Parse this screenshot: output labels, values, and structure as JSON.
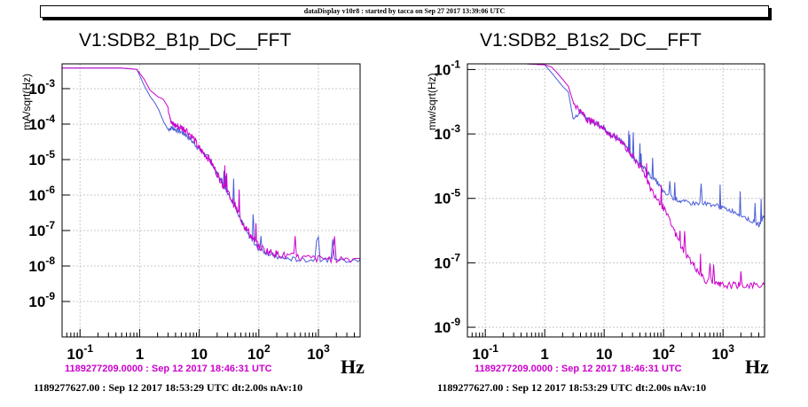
{
  "header": {
    "text": "dataDisplay v10r8 : started by tacca on Sep 27 2017 13:39:06 UTC"
  },
  "colors": {
    "reference_trace": "#cc00cc",
    "current_trace": "#4a5cd6",
    "background": "#ffffff",
    "grid": "#c8c8c8"
  },
  "chart_data": [
    {
      "type": "line",
      "title": "V1:SDB2_B1p_DC__FFT",
      "ylabel": "mA/sqrt(Hz)",
      "xlabel": "Hz",
      "xscale": "log",
      "yscale": "log",
      "xlim": [
        0.05,
        5000
      ],
      "ylim": [
        1e-10,
        0.005
      ],
      "grid": true,
      "x_ticks": [
        {
          "v": 0.1,
          "base": "10",
          "exp": "-1"
        },
        {
          "v": 1,
          "base": "1",
          "exp": ""
        },
        {
          "v": 10,
          "base": "10",
          "exp": ""
        },
        {
          "v": 100,
          "base": "10",
          "exp": "2"
        },
        {
          "v": 1000,
          "base": "10",
          "exp": "3"
        }
      ],
      "y_ticks": [
        {
          "v": 0.001,
          "exp": "-3"
        },
        {
          "v": 0.0001,
          "exp": "-4"
        },
        {
          "v": 1e-05,
          "exp": "-5"
        },
        {
          "v": 1e-06,
          "exp": "-6"
        },
        {
          "v": 1e-07,
          "exp": "-7"
        },
        {
          "v": 1e-08,
          "exp": "-8"
        },
        {
          "v": 1e-09,
          "exp": "-9"
        }
      ],
      "series": [
        {
          "color": "#4a5cd6",
          "x": [
            0.05,
            0.5,
            0.9,
            1.2,
            1.5,
            1.8,
            2.1,
            2.5,
            3,
            3.5,
            4,
            5,
            6,
            8,
            10,
            12,
            15,
            20,
            25,
            30,
            40,
            50,
            60,
            80,
            100,
            150,
            200,
            300,
            500,
            1000,
            2000,
            5000
          ],
          "y": [
            0.0038,
            0.0038,
            0.0035,
            0.0012,
            0.0006,
            0.0004,
            0.00025,
            0.00012,
            7e-05,
            8e-05,
            7e-05,
            6e-05,
            5e-05,
            3e-05,
            2e-05,
            1.5e-05,
            1e-05,
            4e-06,
            2e-06,
            1.2e-06,
            5e-07,
            2e-07,
            1e-07,
            5e-08,
            3e-08,
            2.2e-08,
            1.8e-08,
            1.6e-08,
            1.5e-08,
            1.5e-08,
            1.5e-08,
            1.5e-08
          ]
        },
        {
          "color": "#cc00cc",
          "x": [
            0.05,
            0.5,
            0.9,
            1.2,
            1.5,
            1.8,
            2,
            2.5,
            3,
            3.5,
            4,
            5,
            6,
            8,
            10,
            12,
            15,
            20,
            25,
            30,
            40,
            50,
            60,
            80,
            100,
            150,
            200,
            300,
            500,
            1000,
            2000,
            5000
          ],
          "y": [
            0.0038,
            0.0038,
            0.0035,
            0.0018,
            0.0009,
            0.0007,
            0.0006,
            0.0005,
            0.0003,
            0.0001,
            9e-05,
            8e-05,
            7e-05,
            4e-05,
            2e-05,
            1.5e-05,
            1e-05,
            4e-06,
            2e-06,
            1.2e-06,
            5e-07,
            2e-07,
            1.2e-07,
            6e-08,
            3.5e-08,
            2.5e-08,
            2.2e-08,
            1.9e-08,
            1.7e-08,
            1.6e-08,
            1.6e-08,
            1.6e-08
          ]
        }
      ],
      "timestamp_reference": "1189277209.0000 : Sep 12 2017 18:46:31 UTC",
      "timestamp_current": "1189277627.00 : Sep 12 2017 18:53:29 UTC dt:2.00s nAv:10"
    },
    {
      "type": "line",
      "title": "V1:SDB2_B1s2_DC__FFT",
      "ylabel": "mw/sqrt(Hz)",
      "xlabel": "Hz",
      "xscale": "log",
      "yscale": "log",
      "xlim": [
        0.05,
        5000
      ],
      "ylim": [
        5e-10,
        0.15
      ],
      "grid": true,
      "x_ticks": [
        {
          "v": 0.1,
          "base": "10",
          "exp": "-1"
        },
        {
          "v": 1,
          "base": "1",
          "exp": ""
        },
        {
          "v": 10,
          "base": "10",
          "exp": ""
        },
        {
          "v": 100,
          "base": "10",
          "exp": "2"
        },
        {
          "v": 1000,
          "base": "10",
          "exp": "3"
        }
      ],
      "y_ticks": [
        {
          "v": 0.1,
          "exp": "-1"
        },
        {
          "v": 0.001,
          "exp": "-3"
        },
        {
          "v": 1e-05,
          "exp": "-5"
        },
        {
          "v": 1e-07,
          "exp": "-7"
        },
        {
          "v": 1e-09,
          "exp": "-9"
        }
      ],
      "series": [
        {
          "color": "#4a5cd6",
          "x": [
            0.05,
            0.5,
            1,
            1.3,
            1.6,
            2,
            2.5,
            3,
            4,
            5,
            6,
            8,
            10,
            12,
            15,
            20,
            25,
            30,
            40,
            50,
            60,
            80,
            100,
            150,
            200,
            300,
            500,
            800,
            1000,
            1500,
            2000,
            3000,
            4000,
            5000
          ],
          "y": [
            0.15,
            0.15,
            0.14,
            0.08,
            0.05,
            0.03,
            0.02,
            0.003,
            0.005,
            0.003,
            0.0025,
            0.002,
            0.0015,
            0.001,
            0.0008,
            0.0006,
            0.0003,
            0.0002,
            0.0001,
            8e-05,
            5e-05,
            3e-05,
            1.5e-05,
            1e-05,
            8e-06,
            7e-06,
            7e-06,
            6e-06,
            5e-06,
            4e-06,
            3e-06,
            2e-06,
            1.5e-06,
            3e-06
          ]
        },
        {
          "color": "#cc00cc",
          "x": [
            0.05,
            0.5,
            1,
            1.3,
            1.6,
            2,
            2.5,
            3,
            4,
            5,
            6,
            8,
            10,
            12,
            15,
            20,
            25,
            30,
            40,
            50,
            60,
            80,
            100,
            150,
            200,
            300,
            400,
            500,
            800,
            1000,
            1500,
            2000,
            3000,
            5000
          ],
          "y": [
            0.15,
            0.15,
            0.14,
            0.12,
            0.08,
            0.05,
            0.03,
            0.01,
            0.005,
            0.003,
            0.0025,
            0.002,
            0.0015,
            0.001,
            0.0008,
            0.0006,
            0.0003,
            0.0002,
            0.0001,
            5e-05,
            2e-05,
            1e-05,
            5e-06,
            1e-06,
            3e-07,
            1e-07,
            5e-08,
            3e-08,
            2e-08,
            2e-08,
            2e-08,
            2e-08,
            2e-08,
            2e-08
          ]
        }
      ],
      "timestamp_reference": "1189277209.0000 : Sep 12 2017 18:46:31 UTC",
      "timestamp_current": "1189277627.00 : Sep 12 2017 18:53:29 UTC dt:2.00s nAv:10"
    }
  ]
}
